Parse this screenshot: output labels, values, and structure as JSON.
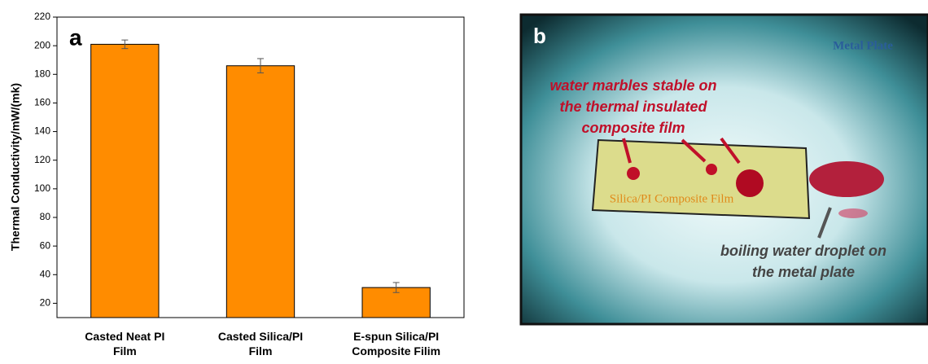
{
  "chart_data": {
    "type": "bar",
    "panel_label": "a",
    "y_label": "Thermal Conductivity/mW/(mk)",
    "categories": [
      "Casted Neat PI Film",
      "Casted Silica/PI Film",
      "E-spun Silica/PI Composite Filim"
    ],
    "values": [
      201,
      186,
      31
    ],
    "errors": [
      3,
      5,
      3.5
    ],
    "color": "#ff8c00",
    "ylim": [
      10,
      220
    ],
    "yticks": [
      20,
      40,
      60,
      80,
      100,
      120,
      140,
      160,
      180,
      200,
      220
    ],
    "grid": false
  },
  "photo_panel": {
    "panel_label": "b",
    "metal_label": "Metal Plate",
    "marbles_note": [
      "water marbles stable on",
      "the thermal insulated",
      "composite film"
    ],
    "film_label": "Silica/PI Composite Film",
    "droplet_note": [
      "boiling water droplet on",
      "the metal plate"
    ]
  }
}
